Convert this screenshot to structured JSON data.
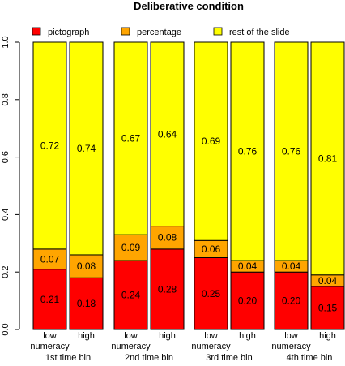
{
  "chart_data": {
    "type": "bar",
    "stacked": true,
    "title": "Deliberative condition",
    "legend_position": "top",
    "ylim": [
      0,
      1
    ],
    "yticks": [
      "0.0",
      "0.2",
      "0.4",
      "0.6",
      "0.8",
      "1.0"
    ],
    "grid": false,
    "groups": [
      "1st time bin",
      "2nd time bin",
      "3rd time bin",
      "4th time bin"
    ],
    "sublabels": [
      [
        "low",
        "numeracy"
      ],
      [
        "high",
        ""
      ]
    ],
    "series": [
      {
        "name": "pictograph",
        "color": "#ff0000",
        "values": [
          0.21,
          0.18,
          0.24,
          0.28,
          0.25,
          0.2,
          0.2,
          0.15
        ],
        "labels": [
          "0.21",
          "0.18",
          "0.24",
          "0.28",
          "0.25",
          "0.20",
          "0.20",
          "0.15"
        ]
      },
      {
        "name": "percentage",
        "color": "#ffa500",
        "values": [
          0.07,
          0.08,
          0.09,
          0.08,
          0.06,
          0.04,
          0.04,
          0.04
        ],
        "labels": [
          "0.07",
          "0.08",
          "0.09",
          "0.08",
          "0.06",
          "0.04",
          "0.04",
          "0.04"
        ]
      },
      {
        "name": "rest of the slide",
        "color": "#ffff00",
        "values": [
          0.72,
          0.74,
          0.67,
          0.64,
          0.69,
          0.76,
          0.76,
          0.81
        ],
        "labels": [
          "0.72",
          "0.74",
          "0.67",
          "0.64",
          "0.69",
          "0.76",
          "0.76",
          "0.81"
        ]
      }
    ]
  }
}
